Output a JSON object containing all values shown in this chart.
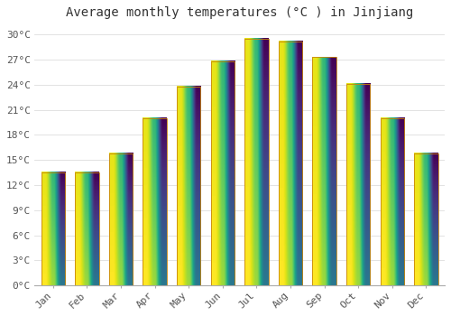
{
  "title": "Average monthly temperatures (°C ) in Jinjiang",
  "months": [
    "Jan",
    "Feb",
    "Mar",
    "Apr",
    "May",
    "Jun",
    "Jul",
    "Aug",
    "Sep",
    "Oct",
    "Nov",
    "Dec"
  ],
  "temperatures": [
    13.5,
    13.5,
    15.8,
    20.0,
    23.8,
    26.8,
    29.5,
    29.2,
    27.3,
    24.1,
    20.0,
    15.8
  ],
  "bar_color_bottom": "#F5A800",
  "bar_color_top": "#FFD966",
  "bar_edge_color": "#C8850A",
  "ylim": [
    0,
    31
  ],
  "yticks": [
    0,
    3,
    6,
    9,
    12,
    15,
    18,
    21,
    24,
    27,
    30
  ],
  "ytick_labels": [
    "0°C",
    "3°C",
    "6°C",
    "9°C",
    "12°C",
    "15°C",
    "18°C",
    "21°C",
    "24°C",
    "27°C",
    "30°C"
  ],
  "background_color": "#ffffff",
  "grid_color": "#dddddd",
  "title_fontsize": 10,
  "tick_fontsize": 8,
  "font_family": "monospace"
}
